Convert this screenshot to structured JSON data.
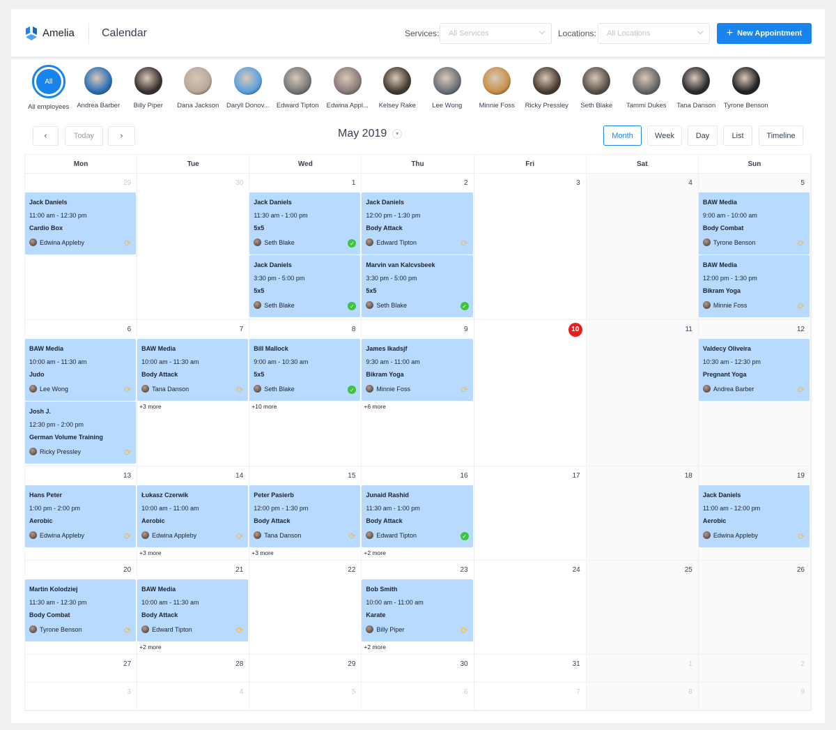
{
  "header": {
    "brand": "Amelia",
    "title": "Calendar",
    "services_label": "Services:",
    "services_value": "All Services",
    "locations_label": "Locations:",
    "locations_value": "All Locations",
    "new_button": "New Appointment",
    "accent": "#1a84ee"
  },
  "employees": [
    {
      "name": "All employees",
      "badge": "All",
      "selected": true
    },
    {
      "name": "Andrea Barber"
    },
    {
      "name": "Billy Piper"
    },
    {
      "name": "Dana Jackson"
    },
    {
      "name": "Daryll Donov..."
    },
    {
      "name": "Edward Tipton"
    },
    {
      "name": "Edwina Appl..."
    },
    {
      "name": "Kelsey Rake"
    },
    {
      "name": "Lee Wong"
    },
    {
      "name": "Minnie Foss"
    },
    {
      "name": "Ricky Pressley"
    },
    {
      "name": "Seth Blake"
    },
    {
      "name": "Tammi Dukes"
    },
    {
      "name": "Tana Danson"
    },
    {
      "name": "Tyrone Benson"
    }
  ],
  "toolbar": {
    "prev": "‹",
    "today": "Today",
    "next": "›",
    "month_title": "May 2019",
    "views": [
      "Month",
      "Week",
      "Day",
      "List",
      "Timeline"
    ],
    "active_view": "Month"
  },
  "calendar": {
    "weekdays": [
      "Mon",
      "Tue",
      "Wed",
      "Thu",
      "Fri",
      "Sat",
      "Sun"
    ],
    "today": "10",
    "weeks": [
      {
        "days": [
          {
            "d": "29",
            "other": true,
            "events": [
              {
                "title": "Jack Daniels",
                "time": "11:00 am - 12:30 pm",
                "service": "Cardio Box",
                "employee": "Edwina Appleby",
                "status": "pending"
              }
            ]
          },
          {
            "d": "30",
            "other": true,
            "events": []
          },
          {
            "d": "1",
            "events": [
              {
                "title": "Jack Daniels",
                "time": "11:30 am - 1:00 pm",
                "service": "5x5",
                "employee": "Seth Blake",
                "status": "approved"
              },
              {
                "title": "Jack Daniels",
                "time": "3:30 pm - 5:00 pm",
                "service": "5x5",
                "employee": "Seth Blake",
                "status": "approved"
              }
            ]
          },
          {
            "d": "2",
            "events": [
              {
                "title": "Jack Daniels",
                "time": "12:00 pm - 1:30 pm",
                "service": "Body Attack",
                "employee": "Edward Tipton",
                "status": "pending"
              },
              {
                "title": "Marvin van Kalcvsbeek",
                "time": "3:30 pm - 5:00 pm",
                "service": "5x5",
                "employee": "Seth Blake",
                "status": "approved"
              }
            ]
          },
          {
            "d": "3",
            "events": []
          },
          {
            "d": "4",
            "events": []
          },
          {
            "d": "5",
            "events": [
              {
                "title": "BAW Media",
                "time": "9:00 am - 10:00 am",
                "service": "Body Combat",
                "employee": "Tyrone Benson",
                "status": "pending"
              },
              {
                "title": "BAW Media",
                "time": "12:00 pm - 1:30 pm",
                "service": "Bikram Yoga",
                "employee": "Minnie Foss",
                "status": "pending"
              }
            ]
          }
        ]
      },
      {
        "days": [
          {
            "d": "6",
            "events": [
              {
                "title": "BAW Media",
                "time": "10:00 am - 11:30 am",
                "service": "Judo",
                "employee": "Lee Wong",
                "status": "pending"
              },
              {
                "title": "Josh J.",
                "time": "12:30 pm - 2:00 pm",
                "service": "German Volume Training",
                "employee": "Ricky Pressley",
                "status": "pending"
              }
            ]
          },
          {
            "d": "7",
            "events": [
              {
                "title": "BAW Media",
                "time": "10:00 am - 11:30 am",
                "service": "Body Attack",
                "employee": "Tana Danson",
                "status": "pending"
              }
            ],
            "more": "+3 more"
          },
          {
            "d": "8",
            "events": [
              {
                "title": "Bill Mallock",
                "time": "9:00 am - 10:30 am",
                "service": "5x5",
                "employee": "Seth Blake",
                "status": "approved"
              }
            ],
            "more": "+10 more"
          },
          {
            "d": "9",
            "events": [
              {
                "title": "James Ikadsjf",
                "time": "9:30 am - 11:00 am",
                "service": "Bikram Yoga",
                "employee": "Minnie Foss",
                "status": "pending"
              }
            ],
            "more": "+6 more"
          },
          {
            "d": "10",
            "events": []
          },
          {
            "d": "11",
            "events": []
          },
          {
            "d": "12",
            "events": [
              {
                "title": "Valdecy Oliveira",
                "time": "10:30 am - 12:30 pm",
                "service": "Pregnant Yoga",
                "employee": "Andrea Barber",
                "status": "pending"
              }
            ]
          }
        ]
      },
      {
        "days": [
          {
            "d": "13",
            "events": [
              {
                "title": "Hans Peter",
                "time": "1:00 pm - 2:00 pm",
                "service": "Aerobic",
                "employee": "Edwina Appleby",
                "status": "pending"
              }
            ]
          },
          {
            "d": "14",
            "events": [
              {
                "title": "Łukasz Czerwik",
                "time": "10:00 am - 11:00 am",
                "service": "Aerobic",
                "employee": "Edwina Appleby",
                "status": "pending"
              }
            ],
            "more": "+3 more"
          },
          {
            "d": "15",
            "events": [
              {
                "title": "Peter Pasierb",
                "time": "12:00 pm - 1:30 pm",
                "service": "Body Attack",
                "employee": "Tana Danson",
                "status": "pending"
              }
            ],
            "more": "+3 more"
          },
          {
            "d": "16",
            "events": [
              {
                "title": "Junaid Rashid",
                "time": "11:30 am - 1:00 pm",
                "service": "Body Attack",
                "employee": "Edward Tipton",
                "status": "approved"
              }
            ],
            "more": "+2 more"
          },
          {
            "d": "17",
            "events": []
          },
          {
            "d": "18",
            "events": []
          },
          {
            "d": "19",
            "events": [
              {
                "title": "Jack Daniels",
                "time": "11:00 am - 12:00 pm",
                "service": "Aerobic",
                "employee": "Edwina Appleby",
                "status": "pending"
              }
            ]
          }
        ]
      },
      {
        "days": [
          {
            "d": "20",
            "events": [
              {
                "title": "Martin Kolodziej",
                "time": "11:30 am - 12:30 pm",
                "service": "Body Combat",
                "employee": "Tyrone Benson",
                "status": "pending"
              }
            ]
          },
          {
            "d": "21",
            "events": [
              {
                "title": "BAW Media",
                "time": "10:00 am - 11:30 am",
                "service": "Body Attack",
                "employee": "Edward Tipton",
                "status": "pending"
              }
            ],
            "more": "+2 more"
          },
          {
            "d": "22",
            "events": []
          },
          {
            "d": "23",
            "events": [
              {
                "title": "Bob Smith",
                "time": "10:00 am - 11:00 am",
                "service": "Karate",
                "employee": "Billy Piper",
                "status": "pending"
              }
            ],
            "more": "+2 more"
          },
          {
            "d": "24",
            "events": []
          },
          {
            "d": "25",
            "events": []
          },
          {
            "d": "26",
            "events": []
          }
        ]
      },
      {
        "days": [
          {
            "d": "27",
            "events": []
          },
          {
            "d": "28",
            "events": []
          },
          {
            "d": "29",
            "events": []
          },
          {
            "d": "30",
            "events": []
          },
          {
            "d": "31",
            "events": []
          },
          {
            "d": "1",
            "other": true,
            "events": []
          },
          {
            "d": "2",
            "other": true,
            "events": []
          }
        ]
      },
      {
        "days": [
          {
            "d": "3",
            "other": true,
            "events": []
          },
          {
            "d": "4",
            "other": true,
            "events": []
          },
          {
            "d": "5",
            "other": true,
            "events": []
          },
          {
            "d": "6",
            "other": true,
            "events": []
          },
          {
            "d": "7",
            "other": true,
            "events": []
          },
          {
            "d": "8",
            "other": true,
            "events": []
          },
          {
            "d": "9",
            "other": true,
            "events": []
          }
        ]
      }
    ]
  },
  "status_icons": {
    "pending": "refresh-icon",
    "approved": "check-circle-icon"
  },
  "colors": {
    "event_bg": "#b8dafe",
    "pending": "#f5b93a",
    "approved": "#3cc43c",
    "today": "#e81e1e"
  }
}
